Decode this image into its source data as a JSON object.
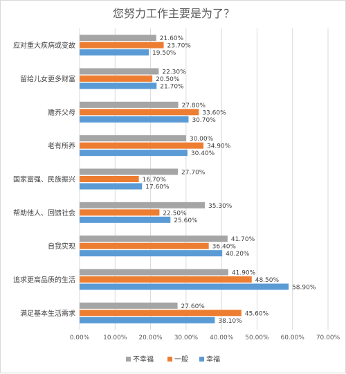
{
  "chart_data": {
    "type": "bar",
    "orientation": "horizontal",
    "title": "您努力工作主要是为了？",
    "categories": [
      "应对重大疾病或变故",
      "留给儿女更多财富",
      "赡养父母",
      "老有所养",
      "国家富强、民族振兴",
      "帮助他人、回馈社会",
      "自我实现",
      "追求更高品质的生活",
      "满足基本生活需求"
    ],
    "series": [
      {
        "name": "不幸福",
        "color": "#a5a5a5",
        "values": [
          21.6,
          22.3,
          27.8,
          30.0,
          27.7,
          35.3,
          41.7,
          41.9,
          27.6
        ],
        "labels": [
          "21.60%",
          "22.30%",
          "27.80%",
          "30.00%",
          "27.70%",
          "35.30%",
          "41.70%",
          "41.90%",
          "27.60%"
        ]
      },
      {
        "name": "一般",
        "color": "#ed7d31",
        "values": [
          23.7,
          20.5,
          33.6,
          34.9,
          16.7,
          22.5,
          36.4,
          48.5,
          45.6
        ],
        "labels": [
          "23.70%",
          "20.50%",
          "33.60%",
          "34.90%",
          "16.70%",
          "22.50%",
          "36.40%",
          "48.50%",
          "45.60%"
        ]
      },
      {
        "name": "幸福",
        "color": "#5b9bd5",
        "values": [
          19.5,
          21.7,
          30.7,
          30.4,
          17.6,
          25.6,
          40.2,
          58.9,
          38.1
        ],
        "labels": [
          "19.50%",
          "21.70%",
          "30.70%",
          "30.40%",
          "17.60%",
          "25.60%",
          "40.20%",
          "58.90%",
          "38.10%"
        ]
      }
    ],
    "xlim": [
      0,
      70
    ],
    "ticks": [
      0,
      10,
      20,
      30,
      40,
      50,
      60,
      70
    ],
    "tick_labels": [
      "0.00%",
      "10.00%",
      "20.00%",
      "30.00%",
      "40.00%",
      "50.00%",
      "60.00%",
      "70.00%"
    ],
    "grid": true,
    "legend": "bottom"
  }
}
